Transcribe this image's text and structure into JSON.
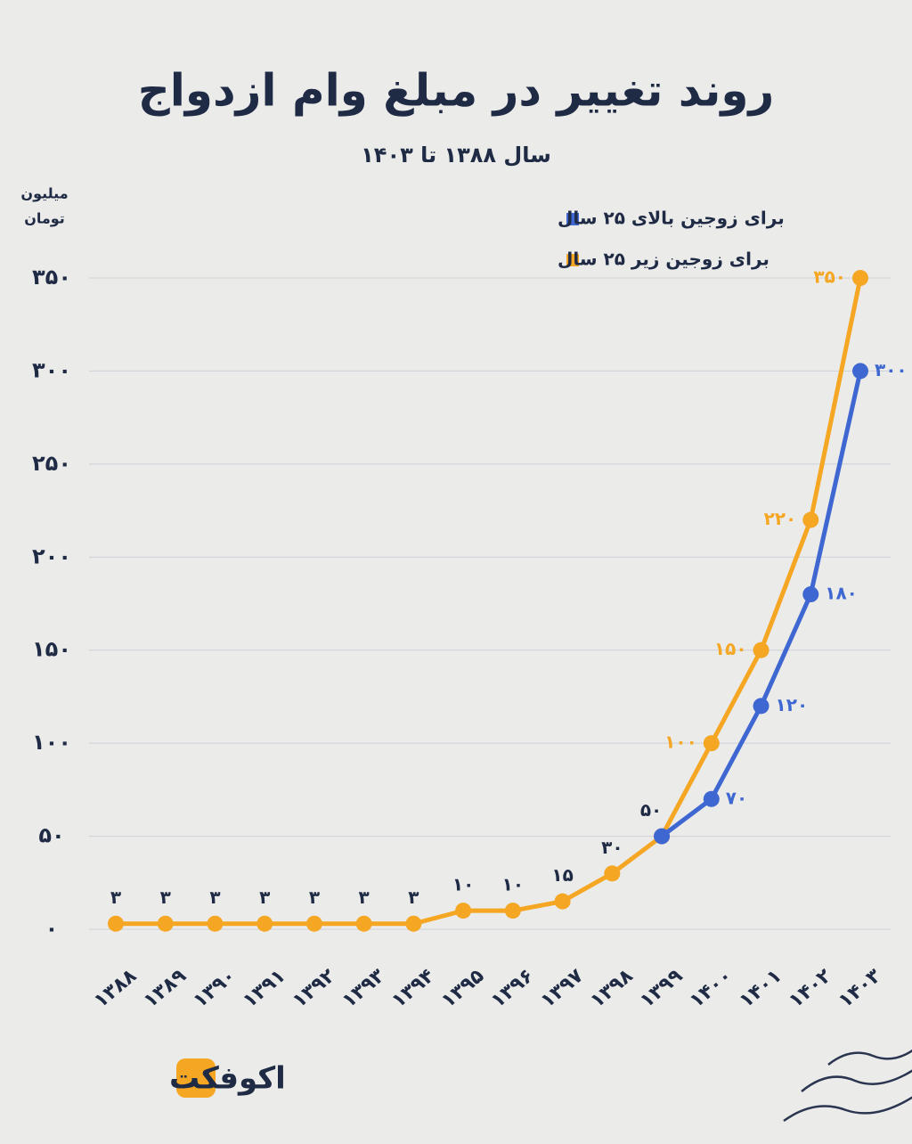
{
  "chart_data": {
    "type": "line",
    "title": "روند تغییر در مبلغ وام ازدواج",
    "subtitle": "سال ۱۳۸۸ تا ۱۴۰۳",
    "y_label": [
      "میلیون",
      "تومان"
    ],
    "brand": "اکوفکت",
    "categories": [
      "۱۳۸۸",
      "۱۳۸۹",
      "۱۳۹۰",
      "۱۳۹۱",
      "۱۳۹۲",
      "۱۳۹۳",
      "۱۳۹۴",
      "۱۳۹۵",
      "۱۳۹۶",
      "۱۳۹۷",
      "۱۳۹۸",
      "۱۳۹۹",
      "۱۴۰۰",
      "۱۴۰۱",
      "۱۴۰۲",
      "۱۴۰۳"
    ],
    "series": [
      {
        "name": "برای زوجین بالای ۲۵ سال",
        "color": "#3f67d1",
        "values": [
          null,
          null,
          null,
          null,
          null,
          null,
          null,
          null,
          null,
          null,
          null,
          50,
          70,
          120,
          180,
          300
        ],
        "value_labels": [
          null,
          null,
          null,
          null,
          null,
          null,
          null,
          null,
          null,
          null,
          null,
          null,
          "۷۰",
          "۱۲۰",
          "۱۸۰",
          "۳۰۰"
        ]
      },
      {
        "name": "برای زوجین زیر ۲۵ سال",
        "color": "#f5a623",
        "values": [
          3,
          3,
          3,
          3,
          3,
          3,
          3,
          10,
          10,
          15,
          30,
          50,
          100,
          150,
          220,
          350
        ],
        "value_labels": [
          "۳",
          "۳",
          "۳",
          "۳",
          "۳",
          "۳",
          "۳",
          "۱۰",
          "۱۰",
          "۱۵",
          "۳۰",
          "۵۰",
          "۱۰۰",
          "۱۵۰",
          "۲۲۰",
          "۳۵۰"
        ]
      }
    ],
    "ylim": [
      0,
      350
    ],
    "yticks": [
      {
        "value": 0,
        "label": "۰"
      },
      {
        "value": 50,
        "label": "۵۰"
      },
      {
        "value": 100,
        "label": "۱۰۰"
      },
      {
        "value": 150,
        "label": "۱۵۰"
      },
      {
        "value": 200,
        "label": "۲۰۰"
      },
      {
        "value": 250,
        "label": "۲۵۰"
      },
      {
        "value": 300,
        "label": "۳۰۰"
      },
      {
        "value": 350,
        "label": "۳۵۰"
      }
    ],
    "grid": true
  }
}
